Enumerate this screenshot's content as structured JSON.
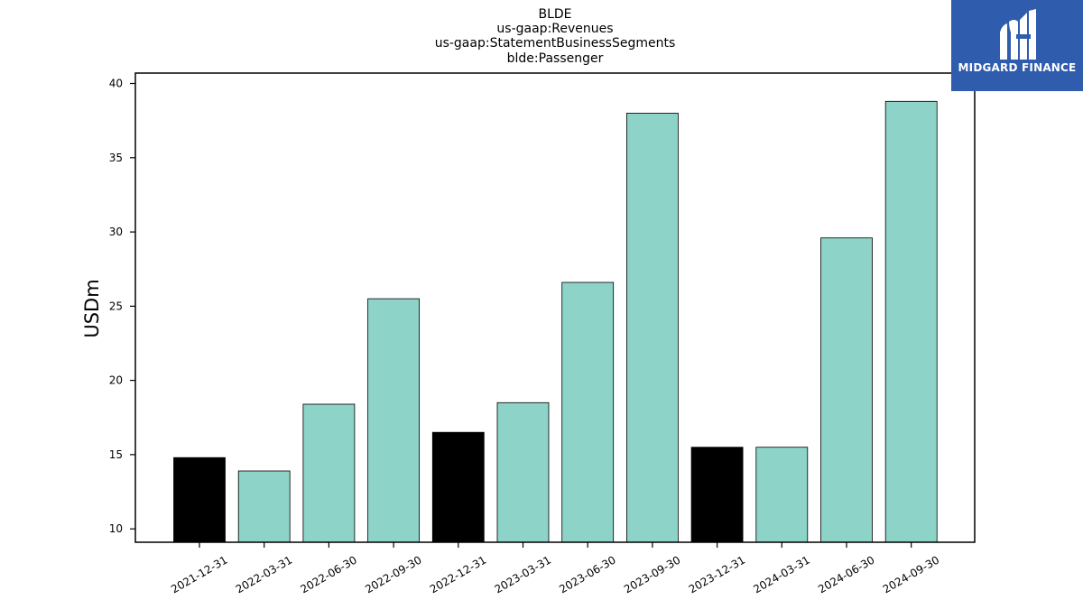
{
  "chart_data": {
    "type": "bar",
    "title_lines": [
      "BLDE",
      "us-gaap:Revenues",
      "us-gaap:StatementBusinessSegments",
      "blde:Passenger"
    ],
    "xlabel": "",
    "ylabel": "USDm",
    "categories": [
      "2021-12-31",
      "2022-03-31",
      "2022-06-30",
      "2022-09-30",
      "2022-12-31",
      "2023-03-31",
      "2023-06-30",
      "2023-09-30",
      "2023-12-31",
      "2024-03-31",
      "2024-06-30",
      "2024-09-30"
    ],
    "values": [
      14.8,
      13.9,
      18.4,
      25.5,
      16.5,
      18.5,
      26.6,
      38.0,
      15.5,
      15.5,
      29.6,
      38.8
    ],
    "bar_colors": [
      "#000000",
      "#8dd3c7",
      "#8dd3c7",
      "#8dd3c7",
      "#000000",
      "#8dd3c7",
      "#8dd3c7",
      "#8dd3c7",
      "#000000",
      "#8dd3c7",
      "#8dd3c7",
      "#8dd3c7"
    ],
    "ylim": [
      9.1,
      40.7
    ],
    "yticks": [
      10,
      15,
      20,
      25,
      30,
      35,
      40
    ],
    "grid": false
  },
  "logo": {
    "text": "MIDGARD FINANCE",
    "background": "#2f5cad",
    "icon": "midgard-logo-icon"
  }
}
